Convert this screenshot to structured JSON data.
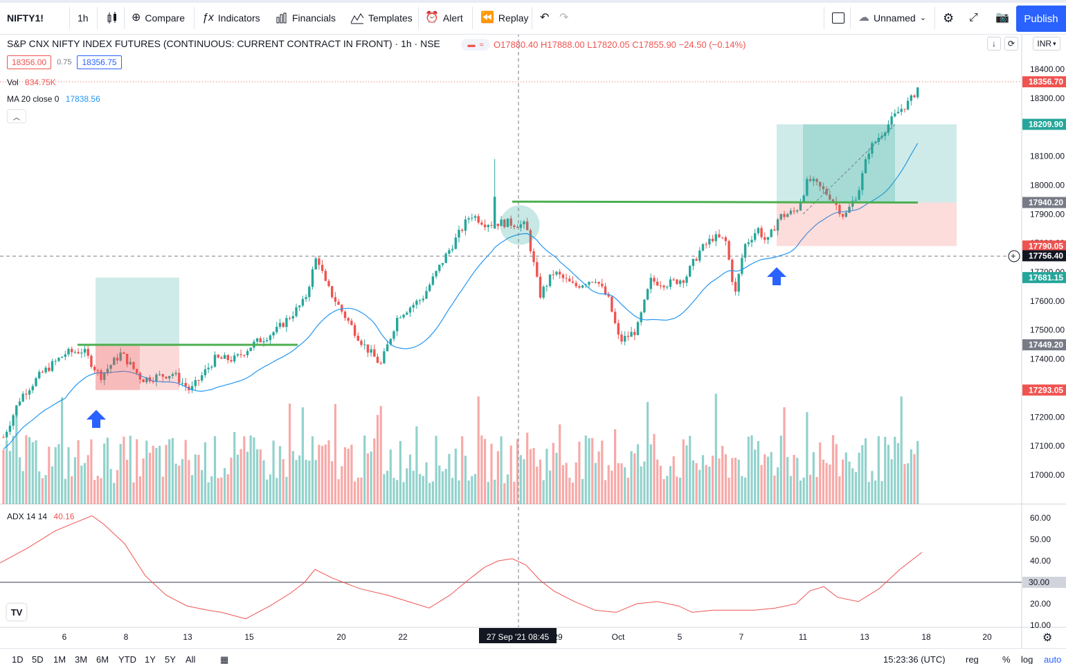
{
  "toolbar": {
    "symbol": "NIFTY1!",
    "interval": "1h",
    "compare": "Compare",
    "indicators": "Indicators",
    "financials": "Financials",
    "templates": "Templates",
    "alert": "Alert",
    "replay": "Replay",
    "layout_name": "Unnamed",
    "publish": "Publish"
  },
  "legend": {
    "title": "S&P CNX NIFTY INDEX FUTURES (CONTINUOUS: CURRENT CONTRACT IN FRONT) · 1h · NSE",
    "open": "O17880.40",
    "high": "H17888.00",
    "low": "L17820.05",
    "close": "C17855.90",
    "change": "−24.50 (−0.14%)",
    "sell_price": "18356.00",
    "spread": "0.75",
    "buy_price": "18356.75",
    "vol_label": "Vol",
    "vol_value": "834.75K",
    "ma_label": "MA 20 close 0",
    "ma_value": "17838.56",
    "currency": "INR"
  },
  "price_axis": {
    "ticks": [
      "18400.00",
      "18300.00",
      "18200.00",
      "18100.00",
      "18000.00",
      "17900.00",
      "17800.00",
      "17700.00",
      "17600.00",
      "17500.00",
      "17400.00",
      "17300.00",
      "17200.00",
      "17100.00",
      "17000.00"
    ],
    "badges": [
      {
        "label": "18356.70",
        "color": "#ef5350"
      },
      {
        "label": "18209.90",
        "color": "#26a69a"
      },
      {
        "label": "17940.20",
        "color": "#787b86"
      },
      {
        "label": "17790.05",
        "color": "#ef5350"
      },
      {
        "label": "17756.40",
        "color": "#131722"
      },
      {
        "label": "17681.15",
        "color": "#26a69a"
      },
      {
        "label": "17449.20",
        "color": "#787b86"
      },
      {
        "label": "17293.05",
        "color": "#ef5350"
      }
    ]
  },
  "adx": {
    "label": "ADX 14 14",
    "value": "40.16",
    "ticks": [
      "60.00",
      "50.00",
      "40.00",
      "30.00",
      "20.00",
      "10.00"
    ],
    "level_badge": "30.00"
  },
  "time_axis": {
    "labels": [
      "6",
      "8",
      "13",
      "15",
      "20",
      "22",
      "29",
      "Oct",
      "5",
      "7",
      "11",
      "13",
      "18",
      "20"
    ],
    "crosshair_label": "27 Sep '21   08:45"
  },
  "bottom": {
    "ranges": [
      "1D",
      "5D",
      "1M",
      "3M",
      "6M",
      "YTD",
      "1Y",
      "5Y",
      "All"
    ],
    "clock": "15:23:36 (UTC)",
    "reg": "reg",
    "percent": "%",
    "log": "log",
    "auto": "auto"
  },
  "colors": {
    "up": "#26a69a",
    "down": "#ef5350",
    "ma": "#2196f3",
    "level": "#4caf50",
    "arrow": "#2962ff"
  },
  "chart_data": {
    "type": "candlestick",
    "symbol": "NIFTY1!",
    "x_range": [
      "2021-09-03",
      "2021-10-20"
    ],
    "price_range": [
      16950,
      18430
    ],
    "horizontal_levels": [
      17449.2,
      17940.2
    ],
    "long_positions": [
      {
        "entry": 17449.2,
        "target": 17681.15,
        "stop": 17293.05
      },
      {
        "entry": 17940.2,
        "target": 18209.9,
        "stop": 17790.05
      }
    ],
    "last_price": 18356.7,
    "adx_range": [
      10,
      62
    ],
    "adx_level": 30
  }
}
